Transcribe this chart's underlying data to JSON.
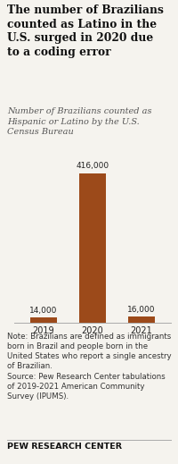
{
  "years": [
    "2019",
    "2020",
    "2021"
  ],
  "values": [
    14000,
    416000,
    16000
  ],
  "bar_color": "#9C4A1A",
  "value_labels": [
    "14,000",
    "416,000",
    "16,000"
  ],
  "title": "The number of Brazilians\ncounted as Latino in the\nU.S. surged in 2020 due\nto a coding error",
  "subtitle": "Number of Brazilians counted as\nHispanic or Latino by the U.S.\nCensus Bureau",
  "note": "Note: Brazilians are defined as immigrants\nborn in Brazil and people born in the\nUnited States who report a single ancestry\nof Brazilian.\nSource: Pew Research Center tabulations\nof 2019-2021 American Community\nSurvey (IPUMS).",
  "footer": "PEW RESEARCH CENTER",
  "background_color": "#f5f3ee",
  "title_fontsize": 8.8,
  "subtitle_fontsize": 7.0,
  "note_fontsize": 6.2,
  "footer_fontsize": 6.8,
  "ylim": [
    0,
    460000
  ]
}
